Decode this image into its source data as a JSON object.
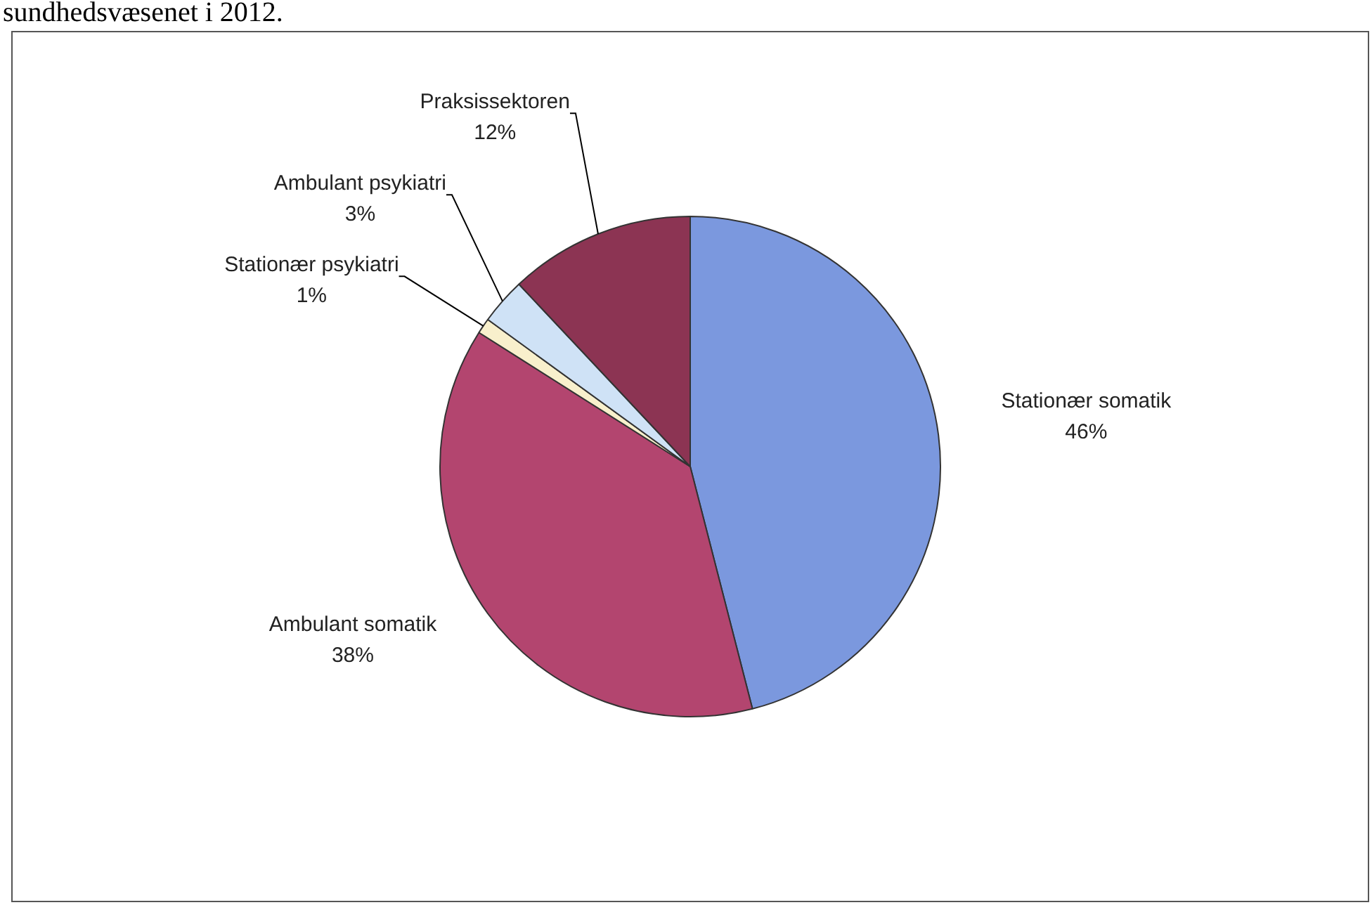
{
  "chart_data": {
    "type": "pie",
    "title": "sundhedsvæsenet i 2012.",
    "categories": [
      "Stationær somatik",
      "Ambulant somatik",
      "Stationær psykiatri",
      "Ambulant psykiatri",
      "Praksissektoren"
    ],
    "values": [
      46,
      38,
      1,
      3,
      12
    ],
    "value_labels": [
      "46%",
      "38%",
      "1%",
      "3%",
      "12%"
    ],
    "colors": [
      "#7b98de",
      "#b3456f",
      "#f8f0cc",
      "#cfe2f6",
      "#8c3453"
    ],
    "legend": false
  }
}
